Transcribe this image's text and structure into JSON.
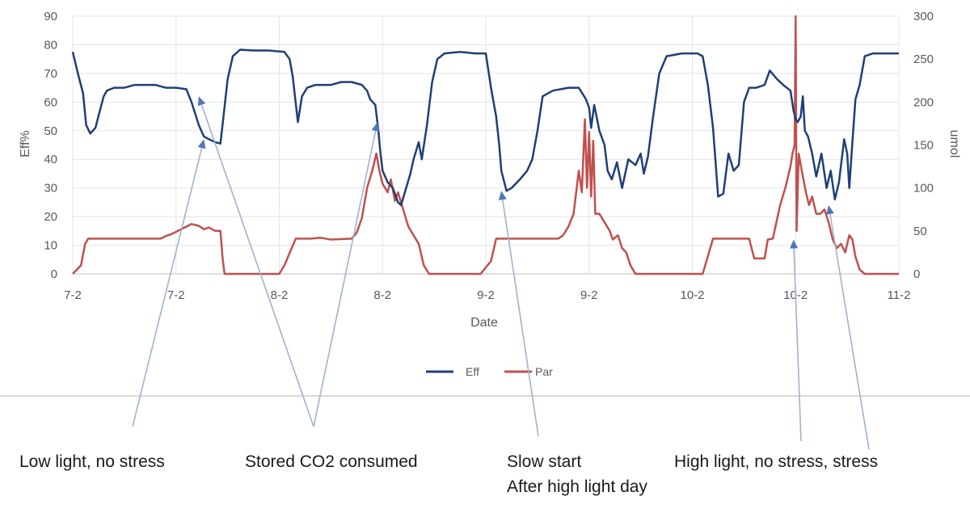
{
  "chart_data": {
    "type": "line",
    "xlabel": "Date",
    "ylabel": "Eff%",
    "y2label": "umol",
    "x_tick_labels": [
      "7-2",
      "7-2",
      "8-2",
      "8-2",
      "9-2",
      "9-2",
      "10-2",
      "10-2",
      "11-2"
    ],
    "ylim": [
      0,
      90
    ],
    "y_ticks": [
      0,
      10,
      20,
      30,
      40,
      50,
      60,
      70,
      80,
      90
    ],
    "y2lim": [
      0,
      300
    ],
    "y2_ticks": [
      0,
      50,
      100,
      150,
      200,
      250,
      300
    ],
    "xlim": [
      0,
      8
    ],
    "grid": true,
    "legend_position": "bottom",
    "series": [
      {
        "name": "Eff",
        "axis": "left",
        "color": "#1f3f77",
        "points": [
          [
            0.0,
            77.5
          ],
          [
            0.05,
            70
          ],
          [
            0.1,
            63
          ],
          [
            0.13,
            52
          ],
          [
            0.17,
            49
          ],
          [
            0.22,
            51
          ],
          [
            0.27,
            58
          ],
          [
            0.3,
            62
          ],
          [
            0.33,
            64
          ],
          [
            0.4,
            65
          ],
          [
            0.5,
            65
          ],
          [
            0.6,
            66
          ],
          [
            0.7,
            66
          ],
          [
            0.8,
            66
          ],
          [
            0.9,
            65
          ],
          [
            1.0,
            65
          ],
          [
            1.1,
            64.5
          ],
          [
            1.15,
            60
          ],
          [
            1.22,
            52
          ],
          [
            1.27,
            48
          ],
          [
            1.32,
            47
          ],
          [
            1.38,
            46
          ],
          [
            1.43,
            45.5
          ],
          [
            1.46,
            55
          ],
          [
            1.5,
            68
          ],
          [
            1.55,
            76
          ],
          [
            1.62,
            78.3
          ],
          [
            1.75,
            78
          ],
          [
            1.9,
            78
          ],
          [
            2.05,
            77.5
          ],
          [
            2.1,
            75
          ],
          [
            2.13,
            69
          ],
          [
            2.18,
            53
          ],
          [
            2.22,
            62
          ],
          [
            2.27,
            65
          ],
          [
            2.35,
            66
          ],
          [
            2.5,
            66
          ],
          [
            2.6,
            67
          ],
          [
            2.7,
            67
          ],
          [
            2.8,
            66
          ],
          [
            2.85,
            64
          ],
          [
            2.88,
            61
          ],
          [
            2.93,
            59
          ],
          [
            2.96,
            50
          ],
          [
            2.98,
            42
          ],
          [
            3.0,
            36
          ],
          [
            3.05,
            32
          ],
          [
            3.1,
            30
          ],
          [
            3.15,
            25
          ],
          [
            3.18,
            24
          ],
          [
            3.22,
            29
          ],
          [
            3.27,
            35
          ],
          [
            3.3,
            40
          ],
          [
            3.35,
            46
          ],
          [
            3.38,
            40
          ],
          [
            3.43,
            52
          ],
          [
            3.48,
            67
          ],
          [
            3.53,
            75
          ],
          [
            3.6,
            77
          ],
          [
            3.75,
            77.5
          ],
          [
            3.9,
            77
          ],
          [
            4.0,
            77
          ],
          [
            4.05,
            65
          ],
          [
            4.1,
            55
          ],
          [
            4.13,
            45
          ],
          [
            4.15,
            36
          ],
          [
            4.2,
            29
          ],
          [
            4.25,
            30
          ],
          [
            4.33,
            33
          ],
          [
            4.4,
            36
          ],
          [
            4.45,
            40
          ],
          [
            4.5,
            50
          ],
          [
            4.55,
            62
          ],
          [
            4.65,
            64
          ],
          [
            4.8,
            65
          ],
          [
            4.9,
            65
          ],
          [
            4.97,
            61
          ],
          [
            5.0,
            58
          ],
          [
            5.02,
            51
          ],
          [
            5.05,
            59
          ],
          [
            5.1,
            50
          ],
          [
            5.15,
            45
          ],
          [
            5.18,
            36
          ],
          [
            5.22,
            33
          ],
          [
            5.27,
            39
          ],
          [
            5.32,
            30
          ],
          [
            5.38,
            40
          ],
          [
            5.45,
            38
          ],
          [
            5.5,
            42
          ],
          [
            5.53,
            35
          ],
          [
            5.57,
            41
          ],
          [
            5.62,
            55
          ],
          [
            5.68,
            70
          ],
          [
            5.75,
            76
          ],
          [
            5.9,
            77
          ],
          [
            6.05,
            77
          ],
          [
            6.1,
            76
          ],
          [
            6.15,
            66
          ],
          [
            6.2,
            51
          ],
          [
            6.25,
            27
          ],
          [
            6.3,
            28
          ],
          [
            6.35,
            42
          ],
          [
            6.4,
            36
          ],
          [
            6.45,
            38
          ],
          [
            6.5,
            60
          ],
          [
            6.55,
            65
          ],
          [
            6.62,
            65
          ],
          [
            6.7,
            66
          ],
          [
            6.75,
            71
          ],
          [
            6.82,
            68
          ],
          [
            6.88,
            66
          ],
          [
            6.95,
            64
          ],
          [
            6.98,
            57
          ],
          [
            7.0,
            54
          ],
          [
            7.02,
            53
          ],
          [
            7.05,
            55
          ],
          [
            7.07,
            62
          ],
          [
            7.09,
            50
          ],
          [
            7.12,
            48
          ],
          [
            7.16,
            42
          ],
          [
            7.2,
            34
          ],
          [
            7.25,
            42
          ],
          [
            7.3,
            30
          ],
          [
            7.34,
            36
          ],
          [
            7.38,
            26
          ],
          [
            7.42,
            32
          ],
          [
            7.47,
            47
          ],
          [
            7.5,
            42
          ],
          [
            7.52,
            30
          ],
          [
            7.55,
            46
          ],
          [
            7.58,
            61
          ],
          [
            7.62,
            66
          ],
          [
            7.67,
            76
          ],
          [
            7.75,
            77
          ],
          [
            7.9,
            77
          ],
          [
            8.0,
            77
          ]
        ]
      },
      {
        "name": "Par",
        "axis": "right",
        "color": "#c0504d",
        "points": [
          [
            0.0,
            0
          ],
          [
            0.08,
            10
          ],
          [
            0.12,
            35
          ],
          [
            0.15,
            41
          ],
          [
            0.3,
            41
          ],
          [
            0.7,
            41
          ],
          [
            0.85,
            41
          ],
          [
            0.9,
            44
          ],
          [
            0.95,
            46
          ],
          [
            1.05,
            52
          ],
          [
            1.1,
            55
          ],
          [
            1.15,
            58
          ],
          [
            1.22,
            56
          ],
          [
            1.27,
            52
          ],
          [
            1.32,
            54
          ],
          [
            1.38,
            50
          ],
          [
            1.43,
            50
          ],
          [
            1.45,
            20
          ],
          [
            1.47,
            0
          ],
          [
            1.8,
            0
          ],
          [
            2.0,
            0
          ],
          [
            2.05,
            10
          ],
          [
            2.12,
            30
          ],
          [
            2.16,
            41
          ],
          [
            2.3,
            41
          ],
          [
            2.4,
            42
          ],
          [
            2.5,
            40
          ],
          [
            2.7,
            41
          ],
          [
            2.75,
            48
          ],
          [
            2.8,
            65
          ],
          [
            2.85,
            100
          ],
          [
            2.9,
            120
          ],
          [
            2.94,
            140
          ],
          [
            2.97,
            120
          ],
          [
            3.0,
            105
          ],
          [
            3.05,
            95
          ],
          [
            3.08,
            110
          ],
          [
            3.12,
            85
          ],
          [
            3.15,
            95
          ],
          [
            3.2,
            75
          ],
          [
            3.25,
            55
          ],
          [
            3.3,
            45
          ],
          [
            3.35,
            35
          ],
          [
            3.4,
            10
          ],
          [
            3.45,
            0
          ],
          [
            3.6,
            0
          ],
          [
            3.95,
            0
          ],
          [
            4.05,
            15
          ],
          [
            4.1,
            41
          ],
          [
            4.3,
            41
          ],
          [
            4.55,
            41
          ],
          [
            4.7,
            41
          ],
          [
            4.75,
            45
          ],
          [
            4.8,
            55
          ],
          [
            4.85,
            70
          ],
          [
            4.9,
            120
          ],
          [
            4.93,
            95
          ],
          [
            4.96,
            180
          ],
          [
            4.98,
            100
          ],
          [
            5.0,
            165
          ],
          [
            5.02,
            90
          ],
          [
            5.04,
            155
          ],
          [
            5.06,
            70
          ],
          [
            5.1,
            70
          ],
          [
            5.15,
            60
          ],
          [
            5.2,
            50
          ],
          [
            5.23,
            40
          ],
          [
            5.28,
            45
          ],
          [
            5.32,
            30
          ],
          [
            5.36,
            25
          ],
          [
            5.4,
            10
          ],
          [
            5.45,
            0
          ],
          [
            5.7,
            0
          ],
          [
            6.1,
            0
          ],
          [
            6.2,
            41
          ],
          [
            6.4,
            41
          ],
          [
            6.55,
            41
          ],
          [
            6.6,
            18
          ],
          [
            6.7,
            18
          ],
          [
            6.73,
            40
          ],
          [
            6.78,
            41
          ],
          [
            6.85,
            80
          ],
          [
            6.9,
            100
          ],
          [
            6.95,
            125
          ],
          [
            6.97,
            140
          ],
          [
            6.99,
            150
          ],
          [
            7.0,
            300
          ],
          [
            7.01,
            50
          ],
          [
            7.03,
            140
          ],
          [
            7.06,
            120
          ],
          [
            7.1,
            95
          ],
          [
            7.13,
            80
          ],
          [
            7.16,
            90
          ],
          [
            7.2,
            70
          ],
          [
            7.24,
            70
          ],
          [
            7.28,
            75
          ],
          [
            7.32,
            60
          ],
          [
            7.36,
            40
          ],
          [
            7.4,
            30
          ],
          [
            7.44,
            35
          ],
          [
            7.48,
            25
          ],
          [
            7.52,
            45
          ],
          [
            7.55,
            40
          ],
          [
            7.58,
            20
          ],
          [
            7.62,
            5
          ],
          [
            7.67,
            0
          ],
          [
            7.8,
            0
          ],
          [
            8.0,
            0
          ]
        ]
      }
    ],
    "annotations": [
      {
        "text": "Low light, no stress",
        "arrows_to": [
          [
            1.27,
            47
          ]
        ]
      },
      {
        "text": "Stored CO2 consumed",
        "arrows_to": [
          [
            1.22,
            62
          ],
          [
            2.95,
            53
          ]
        ]
      },
      {
        "text": "Slow start",
        "arrows_to": [
          [
            4.15,
            29
          ]
        ]
      },
      {
        "text": "After high light day",
        "arrows_to": []
      },
      {
        "text": "High light, no stress, stress",
        "arrows_to": [
          [
            6.98,
            12
          ],
          [
            7.32,
            24
          ]
        ]
      }
    ]
  }
}
